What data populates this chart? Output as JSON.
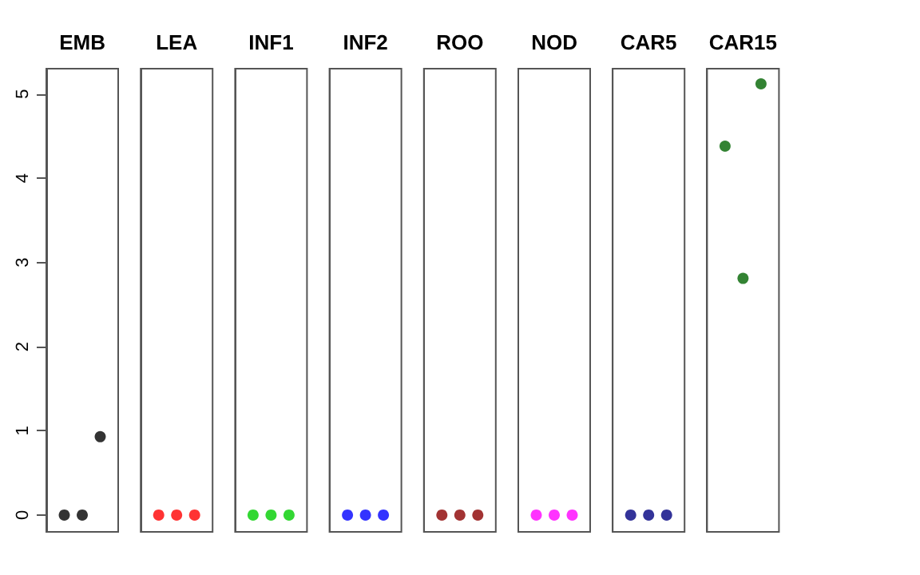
{
  "chart_data": {
    "type": "scatter",
    "categories": [
      "EMB",
      "LEA",
      "INF1",
      "INF2",
      "ROO",
      "NOD",
      "CAR5",
      "CAR15"
    ],
    "series": [
      {
        "values": [
          0,
          0,
          0,
          0,
          0,
          0,
          0,
          4.38
        ],
        "colors": [
          "#000000",
          "#ff0000",
          "#00cd00",
          "#0000ff",
          "#8b0000",
          "#ff00ff",
          "#000080",
          "#006400"
        ]
      },
      {
        "values": [
          0,
          0,
          0,
          0,
          0,
          0,
          0,
          2.81
        ],
        "colors": [
          "#000000",
          "#ff0000",
          "#00cd00",
          "#0000ff",
          "#8b0000",
          "#ff00ff",
          "#000080",
          "#006400"
        ]
      },
      {
        "values": [
          0.93,
          0,
          0,
          0,
          0,
          0,
          0,
          5.12
        ],
        "colors": [
          "#000000",
          "#ff0000",
          "#00cd00",
          "#0000ff",
          "#8b0000",
          "#ff00ff",
          "#000080",
          "#006400"
        ]
      }
    ],
    "ylim": [
      -0.2,
      5.3
    ],
    "yticks": [
      0,
      1,
      2,
      3,
      4,
      5
    ],
    "marker": "circle"
  }
}
